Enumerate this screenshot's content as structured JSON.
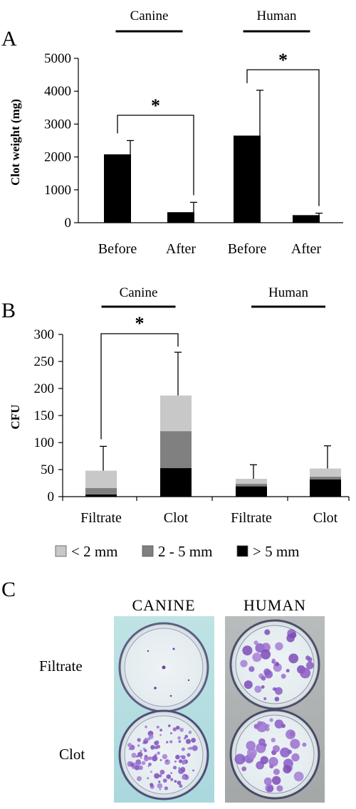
{
  "panels": {
    "A": "A",
    "B": "B",
    "C": "C"
  },
  "chart_data": [
    {
      "type": "bar",
      "panel": "A",
      "ylabel": "Clot weight (mg)",
      "ylim": [
        0,
        5000
      ],
      "yticks": [
        "0",
        "1000",
        "2000",
        "3000",
        "4000",
        "5000"
      ],
      "categories": [
        "Before",
        "After",
        "Before",
        "After"
      ],
      "groups": [
        {
          "name": "Canine",
          "categories": [
            0,
            1
          ]
        },
        {
          "name": "Human",
          "categories": [
            2,
            3
          ]
        }
      ],
      "values": [
        2080,
        320,
        2650,
        230
      ],
      "errors": [
        420,
        300,
        1380,
        60
      ],
      "significance": [
        {
          "from": 0,
          "to": 1,
          "label": "*"
        },
        {
          "from": 2,
          "to": 3,
          "label": "*"
        }
      ],
      "color": "#000000"
    },
    {
      "type": "bar",
      "stacked": true,
      "panel": "B",
      "ylabel": "CFU",
      "ylim": [
        0,
        300
      ],
      "yticks": [
        "0",
        "50",
        "100",
        "150",
        "200",
        "250",
        "300"
      ],
      "categories": [
        "Filtrate",
        "Clot",
        "Filtrate",
        "Clot"
      ],
      "groups": [
        {
          "name": "Canine",
          "categories": [
            0,
            1
          ]
        },
        {
          "name": "Human",
          "categories": [
            2,
            3
          ]
        }
      ],
      "series": [
        {
          "name": "> 5 mm",
          "color": "#000000",
          "values": [
            4,
            53,
            19,
            32
          ]
        },
        {
          "name": "2 - 5 mm",
          "color": "#808080",
          "values": [
            12,
            68,
            5,
            5
          ]
        },
        {
          "name": "< 2 mm",
          "color": "#c8c8c8",
          "values": [
            32,
            66,
            9,
            15
          ]
        }
      ],
      "legend_order": [
        "< 2 mm",
        "2 - 5 mm",
        "> 5 mm"
      ],
      "errors": [
        45,
        80,
        26,
        42
      ],
      "significance": [
        {
          "from": 0,
          "to": 1,
          "label": "*"
        }
      ],
      "legend_position": "bottom"
    }
  ],
  "photos": {
    "columns": [
      "CANINE",
      "HUMAN"
    ],
    "rows": [
      "Filtrate",
      "Clot"
    ]
  }
}
